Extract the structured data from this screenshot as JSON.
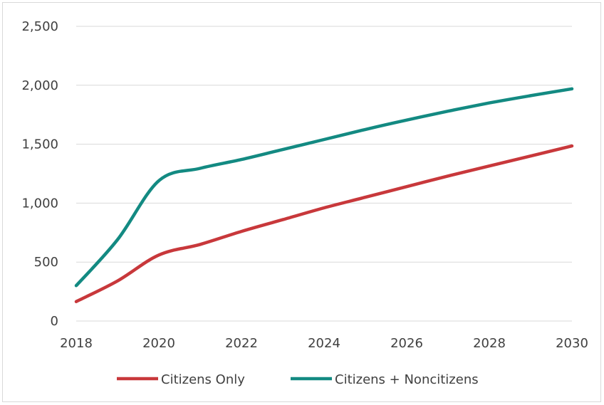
{
  "chart_data": {
    "type": "line",
    "title": "",
    "xlabel": "",
    "ylabel": "",
    "xlim": [
      2018,
      2030
    ],
    "ylim": [
      0,
      2500
    ],
    "x_ticks": [
      2018,
      2020,
      2022,
      2024,
      2026,
      2028,
      2030
    ],
    "x_tick_labels": [
      "2018",
      "2020",
      "2022",
      "2024",
      "2026",
      "2028",
      "2030"
    ],
    "y_ticks": [
      0,
      500,
      1000,
      1500,
      2000,
      2500
    ],
    "y_tick_labels": [
      "0",
      "500",
      "1,000",
      "1,500",
      "2,000",
      "2,500"
    ],
    "grid": "horizontal",
    "legend_position": "bottom",
    "x": [
      2018,
      2019,
      2020,
      2021,
      2022,
      2023,
      2024,
      2025,
      2026,
      2027,
      2028,
      2029,
      2030
    ],
    "series": [
      {
        "name": "Citizens Only",
        "color": "#c8383b",
        "values": [
          165,
          340,
          560,
          650,
          760,
          860,
          960,
          1050,
          1140,
          1230,
          1315,
          1400,
          1485
        ]
      },
      {
        "name": "Citizens + Noncitizens",
        "color": "#138a82",
        "values": [
          300,
          690,
          1190,
          1295,
          1370,
          1455,
          1540,
          1625,
          1705,
          1780,
          1850,
          1912,
          1970
        ]
      }
    ]
  }
}
